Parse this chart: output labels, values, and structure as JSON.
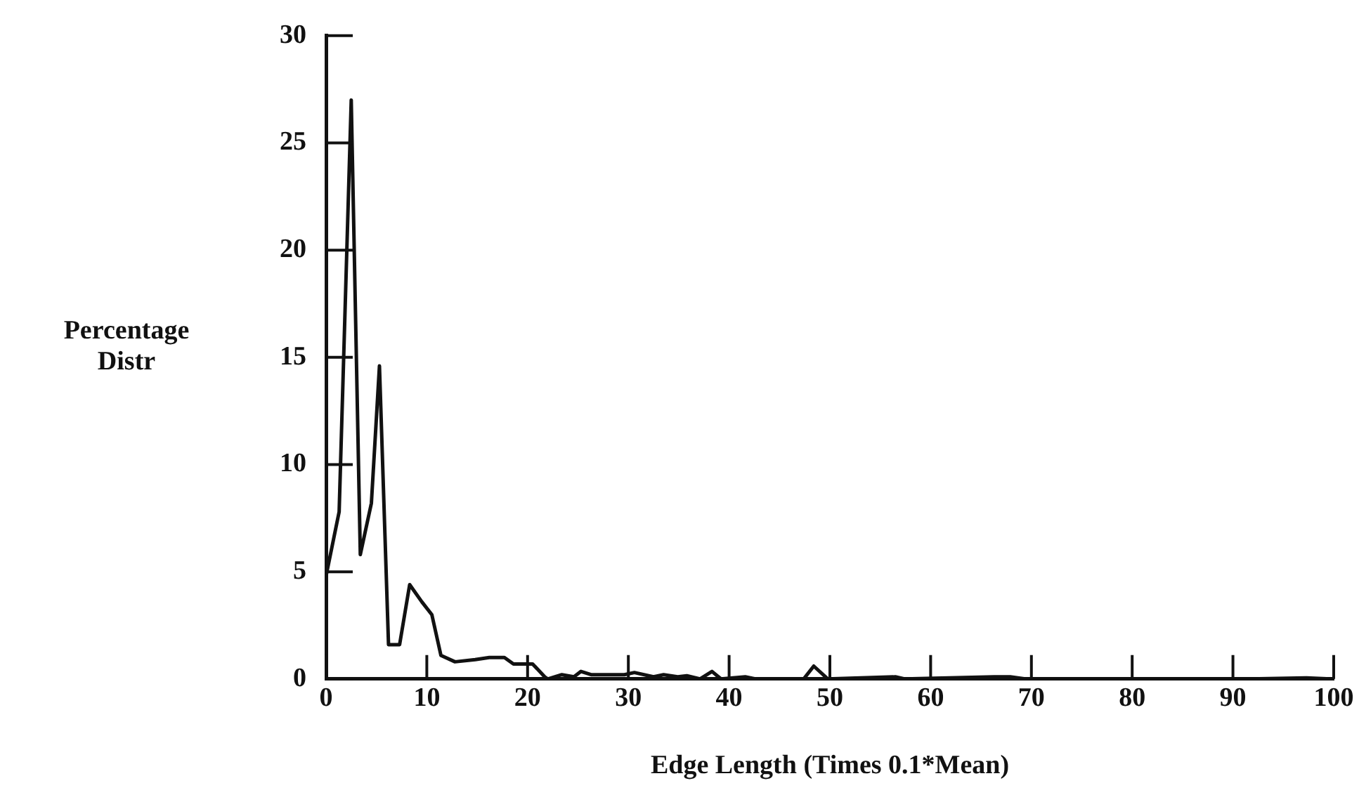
{
  "chart_data": {
    "type": "line",
    "xlabel": "Edge Length (Times 0.1*Mean)",
    "ylabel": "Percentage Distr",
    "xlim": [
      0,
      100
    ],
    "xticks": [
      0,
      10,
      20,
      30,
      40,
      50,
      60,
      70,
      80,
      90,
      100
    ],
    "ylim": [
      0,
      30
    ],
    "yticks": [
      0,
      5,
      10,
      15,
      20,
      25,
      30
    ],
    "grid": false,
    "legend": false,
    "marker": "none",
    "line_style": "solid",
    "series": [
      {
        "color": "#111111",
        "x": [
          0,
          1.3,
          2.5,
          3.4,
          4.5,
          5.3,
          6.2,
          7.3,
          8.3,
          9.5,
          10.5,
          11.4,
          12.8,
          14.8,
          16.2,
          17.7,
          18.6,
          20.5,
          21.7,
          22,
          23.4,
          24.6,
          25.3,
          26.3,
          29.6,
          30.6,
          32.5,
          33.5,
          34.9,
          35.8,
          37.1,
          38.3,
          39.2,
          41.6,
          42.6,
          47.4,
          48.4,
          49.8,
          56.5,
          57.4,
          66.3,
          67.9,
          69.4,
          91.5,
          97.3,
          99.7
        ],
        "values": [
          4.8,
          7.8,
          27.0,
          5.8,
          8.2,
          14.6,
          1.6,
          1.6,
          4.4,
          3.6,
          3.0,
          1.1,
          0.8,
          0.9,
          1.0,
          1.0,
          0.7,
          0.7,
          0.1,
          0,
          0.2,
          0.1,
          0.35,
          0.2,
          0.2,
          0.3,
          0.1,
          0.2,
          0.1,
          0.15,
          0,
          0.35,
          0,
          0.1,
          0,
          0,
          0.6,
          0,
          0.1,
          0,
          0.1,
          0.1,
          0,
          0,
          0.05,
          0
        ]
      }
    ]
  }
}
